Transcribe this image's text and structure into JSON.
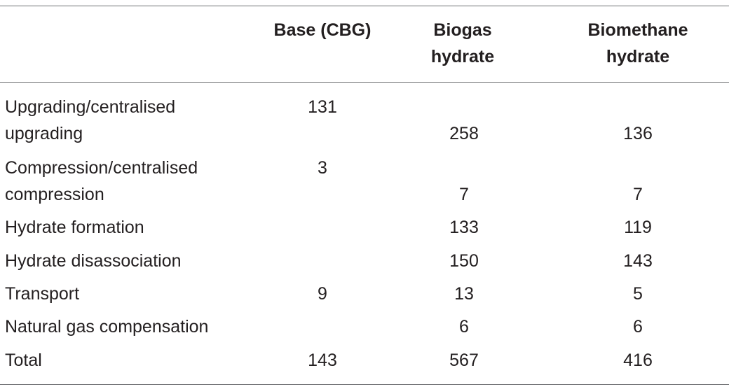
{
  "table": {
    "headers": {
      "c0": "",
      "c1": "Base (CBG)",
      "c2_line1": "Biogas",
      "c2_line2": "hydrate",
      "c3_line1": "Biomethane",
      "c3_line2": "hydrate"
    },
    "rows": [
      {
        "label_line1": "Upgrading/centralised",
        "label_line2": "upgrading",
        "base": "131",
        "biogas": "258",
        "biomethane": "136"
      },
      {
        "label_line1": "Compression/centralised",
        "label_line2": "compression",
        "base": "3",
        "biogas": "7",
        "biomethane": "7"
      },
      {
        "label": "Hydrate formation",
        "base": "",
        "biogas": "133",
        "biomethane": "119"
      },
      {
        "label": "Hydrate disassociation",
        "base": "",
        "biogas": "150",
        "biomethane": "143"
      },
      {
        "label": "Transport",
        "base": "9",
        "biogas": "13",
        "biomethane": "5"
      },
      {
        "label": "Natural gas compensation",
        "base": "",
        "biogas": "6",
        "biomethane": "6"
      },
      {
        "label": "Total",
        "base": "143",
        "biogas": "567",
        "biomethane": "416"
      }
    ]
  }
}
